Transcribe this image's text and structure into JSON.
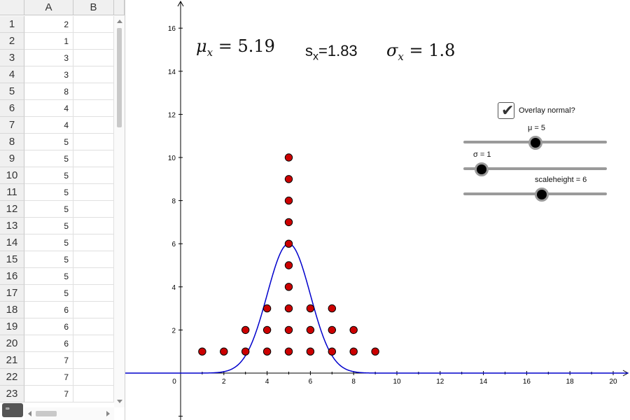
{
  "spreadsheet": {
    "columns": [
      "A",
      "B"
    ],
    "rows": [
      {
        "n": "1",
        "a": "2"
      },
      {
        "n": "2",
        "a": "1"
      },
      {
        "n": "3",
        "a": "3"
      },
      {
        "n": "4",
        "a": "3"
      },
      {
        "n": "5",
        "a": "8"
      },
      {
        "n": "6",
        "a": "4"
      },
      {
        "n": "7",
        "a": "4"
      },
      {
        "n": "8",
        "a": "5"
      },
      {
        "n": "9",
        "a": "5"
      },
      {
        "n": "10",
        "a": "5"
      },
      {
        "n": "11",
        "a": "5"
      },
      {
        "n": "12",
        "a": "5"
      },
      {
        "n": "13",
        "a": "5"
      },
      {
        "n": "14",
        "a": "5"
      },
      {
        "n": "15",
        "a": "5"
      },
      {
        "n": "16",
        "a": "5"
      },
      {
        "n": "17",
        "a": "5"
      },
      {
        "n": "18",
        "a": "6"
      },
      {
        "n": "19",
        "a": "6"
      },
      {
        "n": "20",
        "a": "6"
      },
      {
        "n": "21",
        "a": "7"
      },
      {
        "n": "22",
        "a": "7"
      },
      {
        "n": "23",
        "a": "7"
      }
    ],
    "keyboard_icon": "keyboard-icon"
  },
  "stats": {
    "mean_label": "μ",
    "mean_sub": "x",
    "mean_value": "= 5.19",
    "s_label": "s",
    "s_sub": "x",
    "s_value": "=1.83",
    "sigma_label": "σ",
    "sigma_sub": "x",
    "sigma_value": "= 1.8"
  },
  "controls": {
    "overlay_label": "Overlay normal?",
    "overlay_checked": true,
    "mu_label": "μ = 5",
    "mu_value": 5,
    "sigma_label": "σ = 1",
    "sigma_value": 1,
    "scale_label": "scaleheight = 6",
    "scale_value": 6
  },
  "chart_data": {
    "type": "scatter",
    "x_ticks": [
      "0",
      "2",
      "4",
      "6",
      "8",
      "10",
      "12",
      "14",
      "16",
      "18",
      "20"
    ],
    "y_ticks": [
      "2",
      "4",
      "6",
      "8",
      "10",
      "12",
      "14",
      "16"
    ],
    "xlim": [
      -2.3,
      20.7
    ],
    "ylim": [
      -2,
      17.2
    ],
    "points": [
      [
        1,
        1
      ],
      [
        2,
        1
      ],
      [
        3,
        1
      ],
      [
        3,
        2
      ],
      [
        4,
        1
      ],
      [
        4,
        2
      ],
      [
        4,
        3
      ],
      [
        5,
        1
      ],
      [
        5,
        2
      ],
      [
        5,
        3
      ],
      [
        5,
        4
      ],
      [
        5,
        5
      ],
      [
        5,
        6
      ],
      [
        5,
        7
      ],
      [
        5,
        8
      ],
      [
        5,
        9
      ],
      [
        5,
        10
      ],
      [
        6,
        1
      ],
      [
        6,
        2
      ],
      [
        6,
        3
      ],
      [
        7,
        1
      ],
      [
        7,
        2
      ],
      [
        7,
        3
      ],
      [
        8,
        1
      ],
      [
        8,
        2
      ],
      [
        9,
        1
      ]
    ],
    "curve": {
      "type": "normal",
      "mu": 5,
      "sigma": 1,
      "height": 6
    },
    "colors": {
      "point_fill": "#cc0000",
      "curve": "#0000cc",
      "axis": "#000000"
    }
  }
}
